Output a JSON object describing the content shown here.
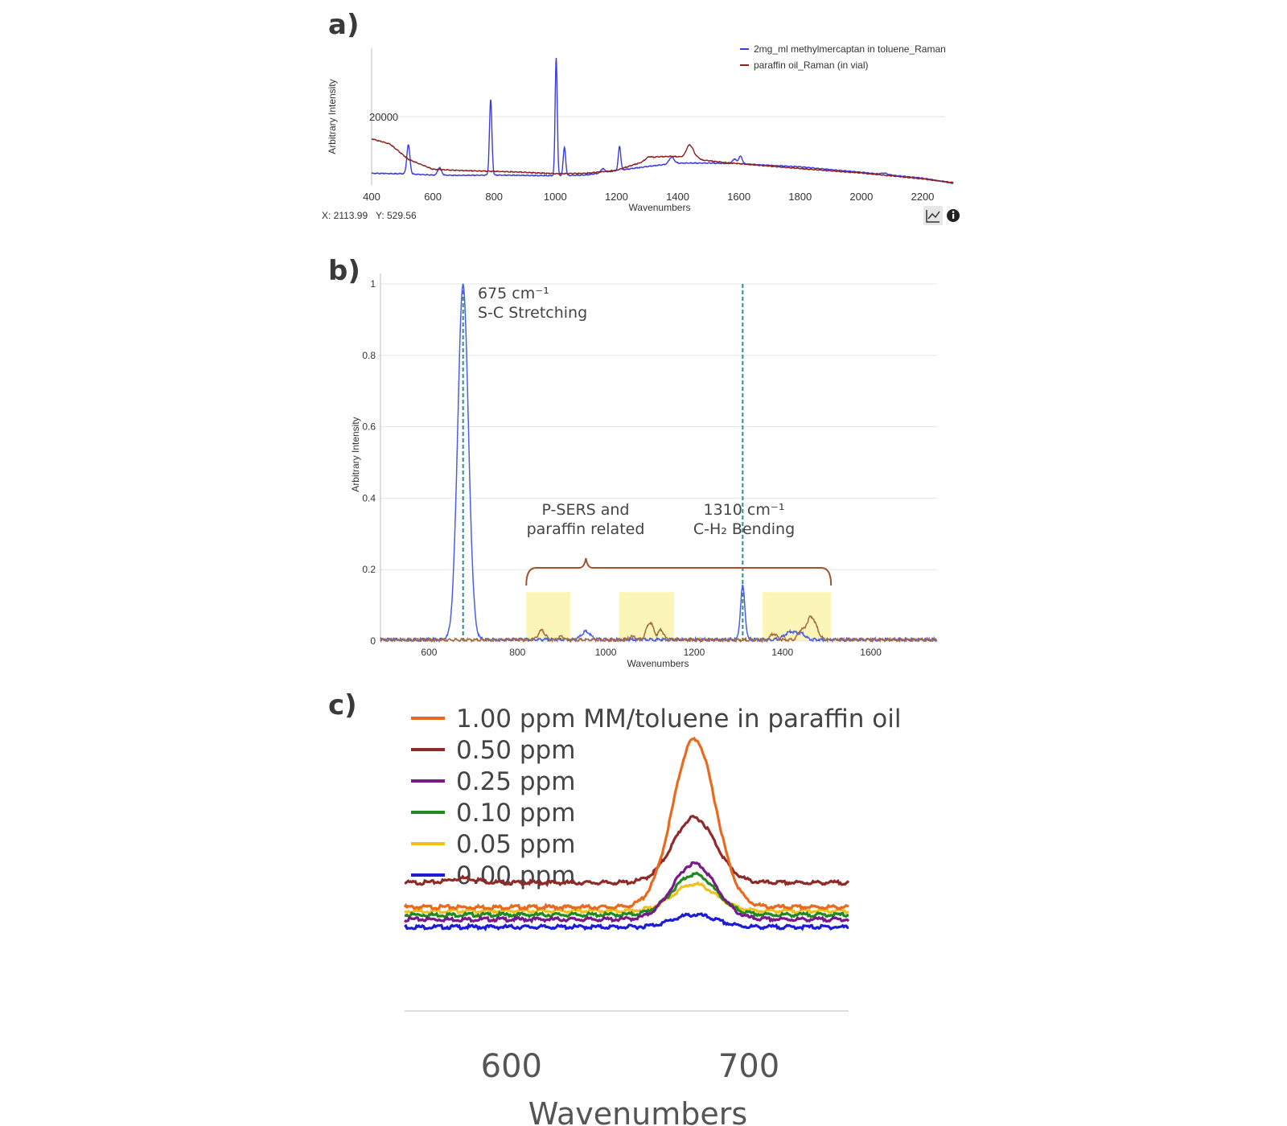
{
  "panels": {
    "a": {
      "label": "a)"
    },
    "b": {
      "label": "b)"
    },
    "c": {
      "label": "c)"
    }
  },
  "chart_data": [
    {
      "id": "a",
      "type": "line",
      "xlabel": "Wavenumbers",
      "ylabel": "Arbitrary Intensity",
      "xlim": [
        400,
        2300
      ],
      "ylim": [
        0,
        40000
      ],
      "x_ticks": [
        400,
        600,
        800,
        1000,
        1200,
        1400,
        1600,
        1800,
        2000,
        2200
      ],
      "y_ticks": [
        20000
      ],
      "grid": true,
      "legend_position": "top-right",
      "series": [
        {
          "name": "2mg_ml methylmercaptan in toluene_Raman",
          "color": "#3b3bdc",
          "baseline": [
            [
              400,
              3400
            ],
            [
              500,
              3300
            ],
            [
              600,
              2900
            ],
            [
              700,
              2800
            ],
            [
              800,
              2900
            ],
            [
              1000,
              2700
            ],
            [
              1100,
              2900
            ],
            [
              1200,
              4200
            ],
            [
              1300,
              5400
            ],
            [
              1400,
              6400
            ],
            [
              1500,
              6400
            ],
            [
              1600,
              6200
            ],
            [
              1800,
              5300
            ],
            [
              2000,
              3700
            ],
            [
              2200,
              2000
            ],
            [
              2300,
              500
            ]
          ],
          "peaks": [
            {
              "x": 520,
              "height": 8500,
              "width": 5
            },
            {
              "x": 622,
              "height": 2200,
              "width": 6
            },
            {
              "x": 789,
              "height": 22000,
              "width": 4
            },
            {
              "x": 1003,
              "height": 34500,
              "width": 3.5
            },
            {
              "x": 1030,
              "height": 8200,
              "width": 4
            },
            {
              "x": 1155,
              "height": 1200,
              "width": 6
            },
            {
              "x": 1210,
              "height": 7000,
              "width": 4
            },
            {
              "x": 1380,
              "height": 2000,
              "width": 8
            },
            {
              "x": 1585,
              "height": 1400,
              "width": 6
            },
            {
              "x": 1605,
              "height": 2200,
              "width": 6
            },
            {
              "x": 2075,
              "height": 400,
              "width": 10
            }
          ]
        },
        {
          "name": "paraffin oil_Raman (in vial)",
          "color": "#8b2020",
          "baseline": [
            [
              400,
              13500
            ],
            [
              460,
              12000
            ],
            [
              520,
              7500
            ],
            [
              600,
              4600
            ],
            [
              700,
              4200
            ],
            [
              800,
              4000
            ],
            [
              900,
              3700
            ],
            [
              1000,
              3300
            ],
            [
              1100,
              3400
            ],
            [
              1200,
              4300
            ],
            [
              1280,
              6600
            ],
            [
              1330,
              8200
            ],
            [
              1380,
              8400
            ],
            [
              1420,
              8200
            ],
            [
              1450,
              9000
            ],
            [
              1480,
              7300
            ],
            [
              1560,
              6500
            ],
            [
              1620,
              6100
            ],
            [
              1800,
              4800
            ],
            [
              2000,
              3500
            ],
            [
              2200,
              1800
            ],
            [
              2300,
              700
            ]
          ],
          "peaks": [
            {
              "x": 1438,
              "height": 3000,
              "width": 10
            },
            {
              "x": 1305,
              "height": 800,
              "width": 10
            }
          ]
        }
      ],
      "readout": {
        "x_label": "X: 2113.99",
        "y_label": "Y: 529.56"
      },
      "toolbar": [
        {
          "name": "chart-icon",
          "interactable": true
        },
        {
          "name": "info-icon",
          "interactable": true
        }
      ]
    },
    {
      "id": "b",
      "type": "line",
      "xlabel": "Wavenumbers",
      "ylabel": "Arbitrary Intensity",
      "xlim": [
        490,
        1750
      ],
      "ylim": [
        0,
        1
      ],
      "x_ticks": [
        600,
        800,
        1000,
        1200,
        1400,
        1600
      ],
      "y_ticks": [
        0,
        0.2,
        0.4,
        0.6,
        0.8,
        1
      ],
      "y_tick_labels": [
        "0",
        "0.2",
        "0.4",
        "0.6",
        "0.8",
        "1"
      ],
      "grid": true,
      "series": [
        {
          "color": "#4a5ee6",
          "baseline": [
            [
              490,
              0.004
            ],
            [
              1750,
              0.004
            ]
          ],
          "peaks": [
            {
              "x": 677,
              "height": 0.995,
              "width": 12
            },
            {
              "x": 955,
              "height": 0.022,
              "width": 10
            },
            {
              "x": 1310,
              "height": 0.15,
              "width": 5
            },
            {
              "x": 1420,
              "height": 0.022,
              "width": 14
            },
            {
              "x": 1445,
              "height": 0.012,
              "width": 8
            }
          ]
        },
        {
          "color": "#a56a3c",
          "baseline": [
            [
              490,
              0.003
            ],
            [
              1750,
              0.003
            ]
          ],
          "peaks": [
            {
              "x": 855,
              "height": 0.026,
              "width": 8
            },
            {
              "x": 900,
              "height": 0.01,
              "width": 6
            },
            {
              "x": 1060,
              "height": 0.01,
              "width": 6
            },
            {
              "x": 1100,
              "height": 0.05,
              "width": 8
            },
            {
              "x": 1125,
              "height": 0.028,
              "width": 6
            },
            {
              "x": 1380,
              "height": 0.018,
              "width": 7
            },
            {
              "x": 1465,
              "height": 0.065,
              "width": 12
            },
            {
              "x": 1440,
              "height": 0.02,
              "width": 6
            }
          ]
        }
      ],
      "vlines": [
        {
          "x": 677,
          "color": "#2a8f8f"
        },
        {
          "x": 1310,
          "color": "#2a8f8f"
        }
      ],
      "highlights": [
        {
          "x0": 820,
          "x1": 920
        },
        {
          "x0": 1030,
          "x1": 1155
        },
        {
          "x0": 1355,
          "x1": 1510
        }
      ],
      "brace": {
        "x0": 820,
        "x1": 1510,
        "tip_x": 955,
        "y": 0.205
      },
      "annotations": [
        {
          "id": "sc",
          "lines": [
            "675 cm⁻¹",
            "S-C Stretching"
          ]
        },
        {
          "id": "psers",
          "lines": [
            "P-SERS and",
            "paraffin related"
          ]
        },
        {
          "id": "ch2",
          "lines": [
            "1310 cm⁻¹",
            "C-H₂ Bending"
          ]
        }
      ]
    },
    {
      "id": "c",
      "type": "line",
      "xlabel": "Wavenumbers",
      "xlim": [
        555,
        742
      ],
      "x_ticks": [
        600,
        700
      ],
      "series": [
        {
          "name": "1.00 ppm MM/toluene in paraffin oil",
          "color": "#e86a1e",
          "offset": 0.078,
          "peak": 0.22
        },
        {
          "name": "0.50 ppm",
          "color": "#8e2a2a",
          "offset": 0.11,
          "peak": 0.085
        },
        {
          "name": "0.25 ppm",
          "color": "#7a1a8a",
          "offset": 0.062,
          "peak": 0.073
        },
        {
          "name": "0.10 ppm",
          "color": "#1f8a1f",
          "offset": 0.068,
          "peak": 0.053
        },
        {
          "name": "0.05 ppm",
          "color": "#f0c020",
          "offset": 0.073,
          "peak": 0.035
        },
        {
          "name": "0.00 ppm",
          "color": "#1c1cd6",
          "offset": 0.052,
          "peak": 0.016
        }
      ]
    }
  ]
}
